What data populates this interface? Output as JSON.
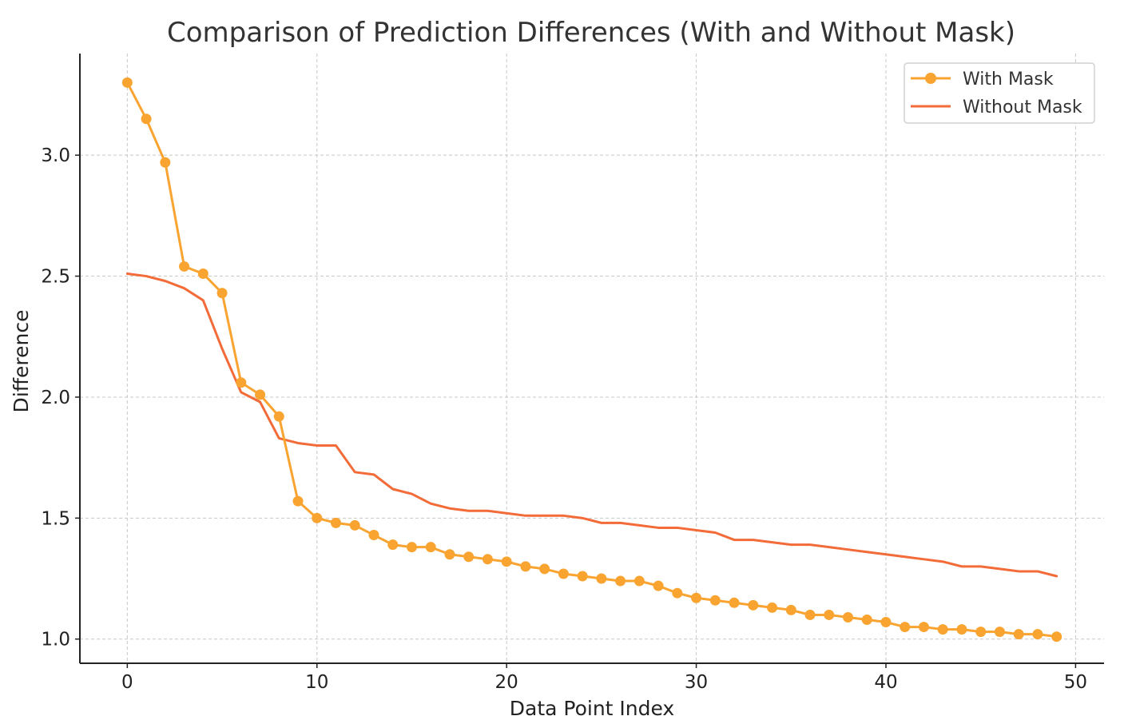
{
  "chart_data": {
    "type": "line",
    "title": "Comparison of Prediction Differences (With and Without Mask)",
    "xlabel": "Data Point Index",
    "ylabel": "Difference",
    "xlim": [
      -2.5,
      51.5
    ],
    "ylim": [
      0.9,
      3.42
    ],
    "xticks": [
      0,
      10,
      20,
      30,
      40,
      50
    ],
    "xtick_labels": [
      "0",
      "10",
      "20",
      "30",
      "40",
      "50"
    ],
    "yticks": [
      1.0,
      1.5,
      2.0,
      2.5,
      3.0
    ],
    "ytick_labels": [
      "1.0",
      "1.5",
      "2.0",
      "2.5",
      "3.0"
    ],
    "grid": true,
    "legend_position": "top-right",
    "x": [
      0,
      1,
      2,
      3,
      4,
      5,
      6,
      7,
      8,
      9,
      10,
      11,
      12,
      13,
      14,
      15,
      16,
      17,
      18,
      19,
      20,
      21,
      22,
      23,
      24,
      25,
      26,
      27,
      28,
      29,
      30,
      31,
      32,
      33,
      34,
      35,
      36,
      37,
      38,
      39,
      40,
      41,
      42,
      43,
      44,
      45,
      46,
      47,
      48,
      49
    ],
    "series": [
      {
        "name": "With Mask",
        "color": "#F9A330",
        "marker": "circle",
        "values": [
          3.3,
          3.15,
          2.97,
          2.54,
          2.51,
          2.43,
          2.06,
          2.01,
          1.92,
          1.57,
          1.5,
          1.48,
          1.47,
          1.43,
          1.39,
          1.38,
          1.38,
          1.35,
          1.34,
          1.33,
          1.32,
          1.3,
          1.29,
          1.27,
          1.26,
          1.25,
          1.24,
          1.24,
          1.22,
          1.19,
          1.17,
          1.16,
          1.15,
          1.14,
          1.13,
          1.12,
          1.1,
          1.1,
          1.09,
          1.08,
          1.07,
          1.05,
          1.05,
          1.04,
          1.04,
          1.03,
          1.03,
          1.02,
          1.02,
          1.01
        ]
      },
      {
        "name": "Without Mask",
        "color": "#F26B38",
        "marker": "none",
        "values": [
          2.51,
          2.5,
          2.48,
          2.45,
          2.4,
          2.2,
          2.02,
          1.98,
          1.83,
          1.81,
          1.8,
          1.8,
          1.69,
          1.68,
          1.62,
          1.6,
          1.56,
          1.54,
          1.53,
          1.53,
          1.52,
          1.51,
          1.51,
          1.51,
          1.5,
          1.48,
          1.48,
          1.47,
          1.46,
          1.46,
          1.45,
          1.44,
          1.41,
          1.41,
          1.4,
          1.39,
          1.39,
          1.38,
          1.37,
          1.36,
          1.35,
          1.34,
          1.33,
          1.32,
          1.3,
          1.3,
          1.29,
          1.28,
          1.28,
          1.26
        ]
      }
    ]
  }
}
